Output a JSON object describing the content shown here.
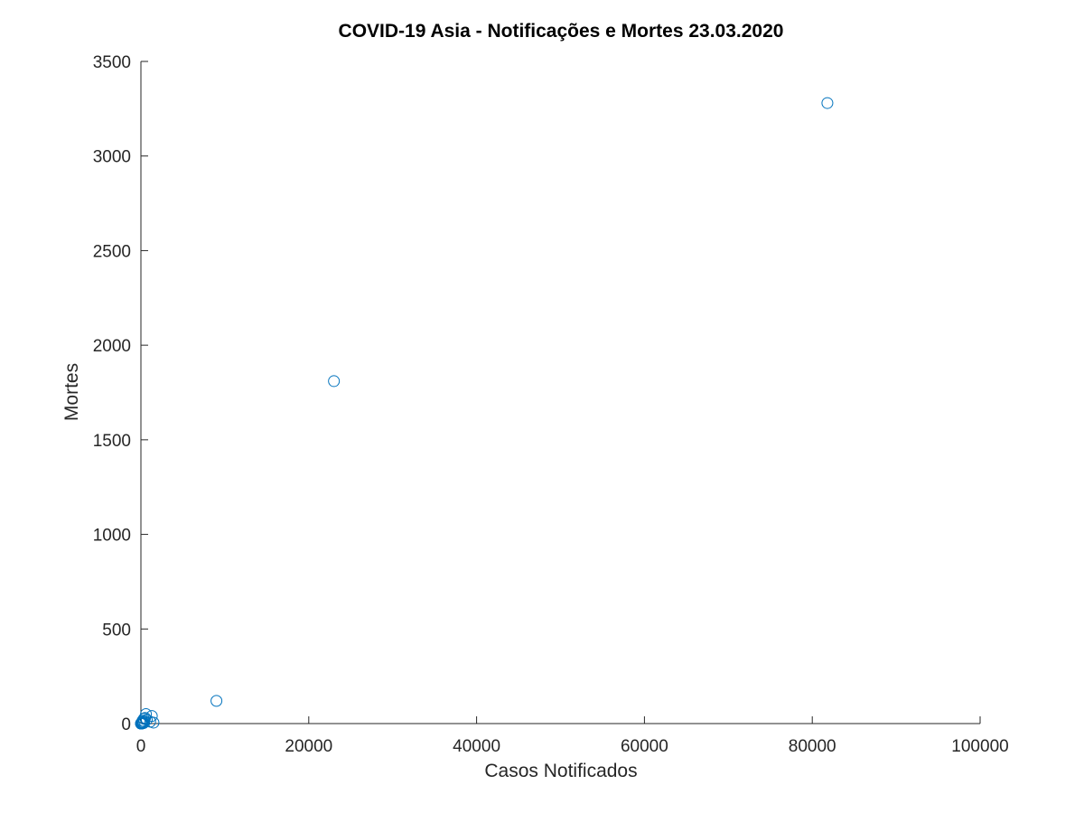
{
  "chart_data": {
    "type": "scatter",
    "title": "COVID-19 Asia - Notificações e Mortes 23.03.2020",
    "xlabel": "Casos Notificados",
    "ylabel": "Mortes",
    "xlim": [
      0,
      100000
    ],
    "ylim": [
      0,
      3500
    ],
    "xticks": [
      0,
      20000,
      40000,
      60000,
      80000,
      100000
    ],
    "yticks": [
      0,
      500,
      1000,
      1500,
      2000,
      2500,
      3000,
      3500
    ],
    "xtick_labels": [
      "0",
      "20000",
      "40000",
      "60000",
      "80000",
      "100000"
    ],
    "ytick_labels": [
      "0",
      "500",
      "1000",
      "1500",
      "2000",
      "2500",
      "3000",
      "3500"
    ],
    "grid": false,
    "marker": "open-circle",
    "marker_color": "#0072BD",
    "axis_color": "#262626",
    "series": [
      {
        "points": [
          {
            "x": 81800,
            "y": 3280
          },
          {
            "x": 23000,
            "y": 1810
          },
          {
            "x": 9000,
            "y": 120
          },
          {
            "x": 1300,
            "y": 40
          },
          {
            "x": 600,
            "y": 50
          },
          {
            "x": 1500,
            "y": 5
          },
          {
            "x": 1100,
            "y": 10
          },
          {
            "x": 700,
            "y": 20
          },
          {
            "x": 500,
            "y": 30
          },
          {
            "x": 400,
            "y": 12
          },
          {
            "x": 350,
            "y": 25
          },
          {
            "x": 300,
            "y": 2
          },
          {
            "x": 250,
            "y": 8
          },
          {
            "x": 200,
            "y": 15
          },
          {
            "x": 180,
            "y": 5
          },
          {
            "x": 150,
            "y": 3
          },
          {
            "x": 120,
            "y": 1
          },
          {
            "x": 100,
            "y": 6
          },
          {
            "x": 90,
            "y": 0
          },
          {
            "x": 80,
            "y": 2
          },
          {
            "x": 60,
            "y": 0
          },
          {
            "x": 50,
            "y": 1
          },
          {
            "x": 40,
            "y": 0
          },
          {
            "x": 30,
            "y": 0
          },
          {
            "x": 20,
            "y": 0
          },
          {
            "x": 10,
            "y": 0
          },
          {
            "x": 5,
            "y": 0
          }
        ]
      }
    ]
  }
}
